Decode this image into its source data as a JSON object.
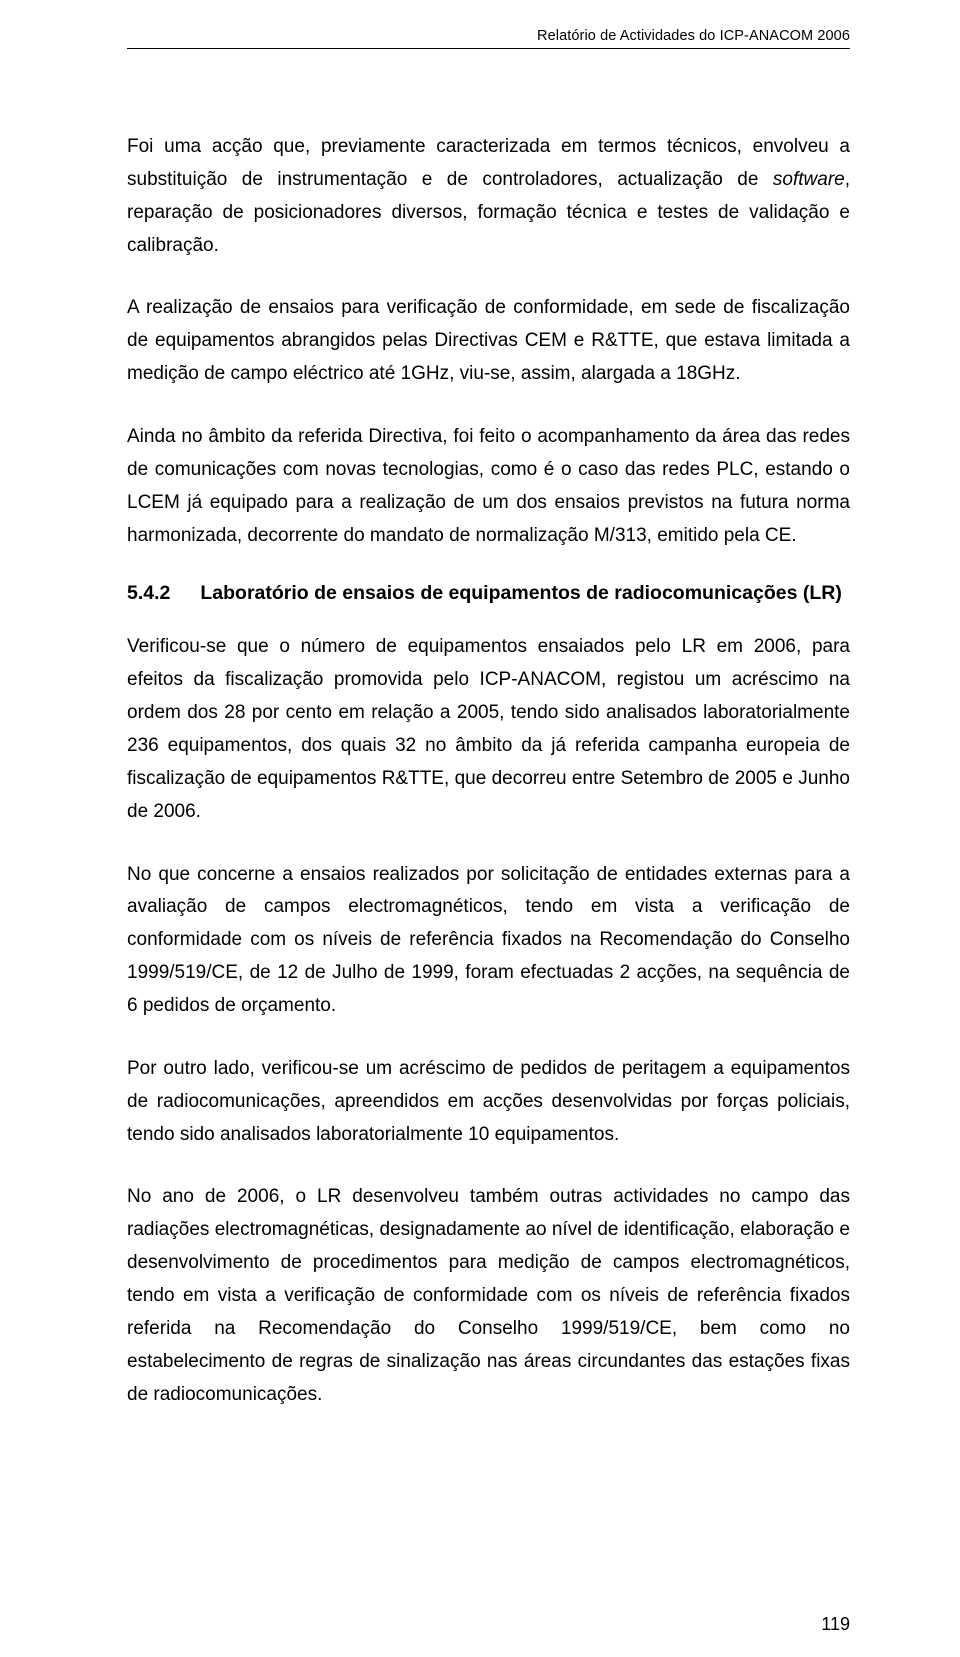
{
  "document": {
    "running_header": "Relatório de Actividades do ICP-ANACOM 2006",
    "page_number": "119",
    "text_color": "#000000",
    "background_color": "#ffffff",
    "body_fontsize_pt": 14,
    "header_fontsize_pt": 11,
    "line_height": 1.73,
    "font_family": "Arial",
    "software_italic": "software"
  },
  "paragraphs": {
    "p1_a": "Foi uma acção que, previamente caracterizada em termos técnicos, envolveu a substituição de instrumentação e de controladores, actualização de ",
    "p1_b": ", reparação de posicionadores diversos, formação técnica e testes de validação e calibração.",
    "p2": "A realização de ensaios para verificação de conformidade, em sede de fiscalização de equipamentos abrangidos pelas Directivas CEM e R&TTE, que estava limitada a medição de campo eléctrico até 1GHz, viu-se, assim, alargada a 18GHz.",
    "p3": "Ainda no âmbito da referida Directiva, foi feito o acompanhamento da área das redes de comunicações com novas tecnologias, como é o caso das redes PLC, estando o LCEM já equipado para a realização de um dos ensaios previstos na futura norma harmonizada, decorrente do mandato de normalização M/313, emitido pela CE.",
    "p4": "Verificou-se que o número de equipamentos ensaiados pelo LR em 2006, para efeitos da fiscalização promovida pelo ICP-ANACOM, registou um acréscimo na ordem dos 28 por cento em relação a 2005, tendo sido analisados laboratorialmente 236 equipamentos, dos quais 32 no âmbito da já referida campanha europeia de fiscalização de equipamentos R&TTE, que decorreu entre Setembro de 2005 e Junho de 2006.",
    "p5": "No que concerne a ensaios realizados por solicitação de entidades externas para a avaliação de campos electromagnéticos, tendo em vista a verificação de conformidade com os níveis de referência fixados na Recomendação do Conselho 1999/519/CE, de 12 de Julho de 1999, foram efectuadas 2 acções, na sequência de 6 pedidos de orçamento.",
    "p6": "Por outro lado, verificou-se um acréscimo de pedidos de peritagem a equipamentos de radiocomunicações, apreendidos em acções desenvolvidas por forças policiais, tendo sido analisados laboratorialmente 10 equipamentos.",
    "p7": "No ano de 2006, o LR desenvolveu também outras actividades no campo das radiações electromagnéticas, designadamente ao nível de identificação, elaboração e desenvolvimento de procedimentos para medição de campos electromagnéticos, tendo em vista a verificação de conformidade com os níveis de referência fixados referida na Recomendação do Conselho 1999/519/CE, bem como no estabelecimento de regras de sinalização nas áreas circundantes das estações fixas de radiocomunicações."
  },
  "section": {
    "number": "5.4.2",
    "title": "Laboratório de ensaios de equipamentos de radiocomunicações (LR)"
  }
}
